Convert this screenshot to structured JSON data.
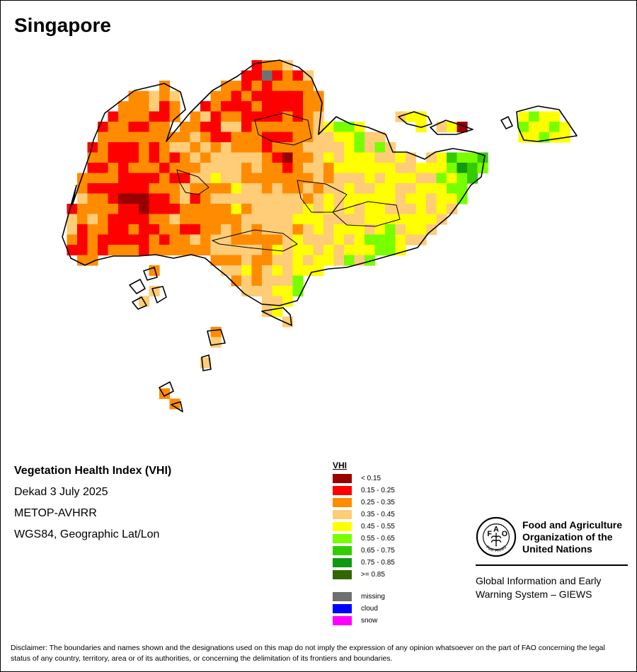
{
  "map": {
    "title": "Singapore",
    "index_name": "Vegetation Health Index (VHI)",
    "period": "Dekad 3 July 2025",
    "sensor": "METOP-AVHRR",
    "projection": "WGS84, Geographic Lat/Lon"
  },
  "legend": {
    "title": "VHI",
    "classes": [
      {
        "label": "< 0.15",
        "color": "#990000"
      },
      {
        "label": "0.15 - 0.25",
        "color": "#ff0000"
      },
      {
        "label": "0.25 - 0.35",
        "color": "#ff8c00"
      },
      {
        "label": "0.35 - 0.45",
        "color": "#ffcc77"
      },
      {
        "label": "0.45 - 0.55",
        "color": "#ffff00"
      },
      {
        "label": "0.55 - 0.65",
        "color": "#77ff00"
      },
      {
        "label": "0.65 - 0.75",
        "color": "#33cc00"
      },
      {
        "label": "0.75 - 0.85",
        "color": "#119911"
      },
      {
        "label": ">= 0.85",
        "color": "#336600"
      }
    ],
    "special": [
      {
        "label": "missing",
        "color": "#707070"
      },
      {
        "label": "cloud",
        "color": "#0000ff"
      },
      {
        "label": "snow",
        "color": "#ff00ff"
      }
    ]
  },
  "organization": {
    "logo_icon": "fao-logo-icon",
    "logo_text": "FIAT PANIS",
    "name_lines": [
      "Food and Agriculture",
      "Organization of the",
      "United Nations"
    ],
    "system_lines": [
      "Global Information and Early",
      "Warning System – GIEWS"
    ]
  },
  "disclaimer": "Disclaimer: The boundaries and names shown and the designations used on this map do not imply the expression of any opinion whatsoever on the part of FAO concerning the legal status of any country, territory, area or of its authorities, or concerning the delimitation of its frontiers and boundaries."
}
